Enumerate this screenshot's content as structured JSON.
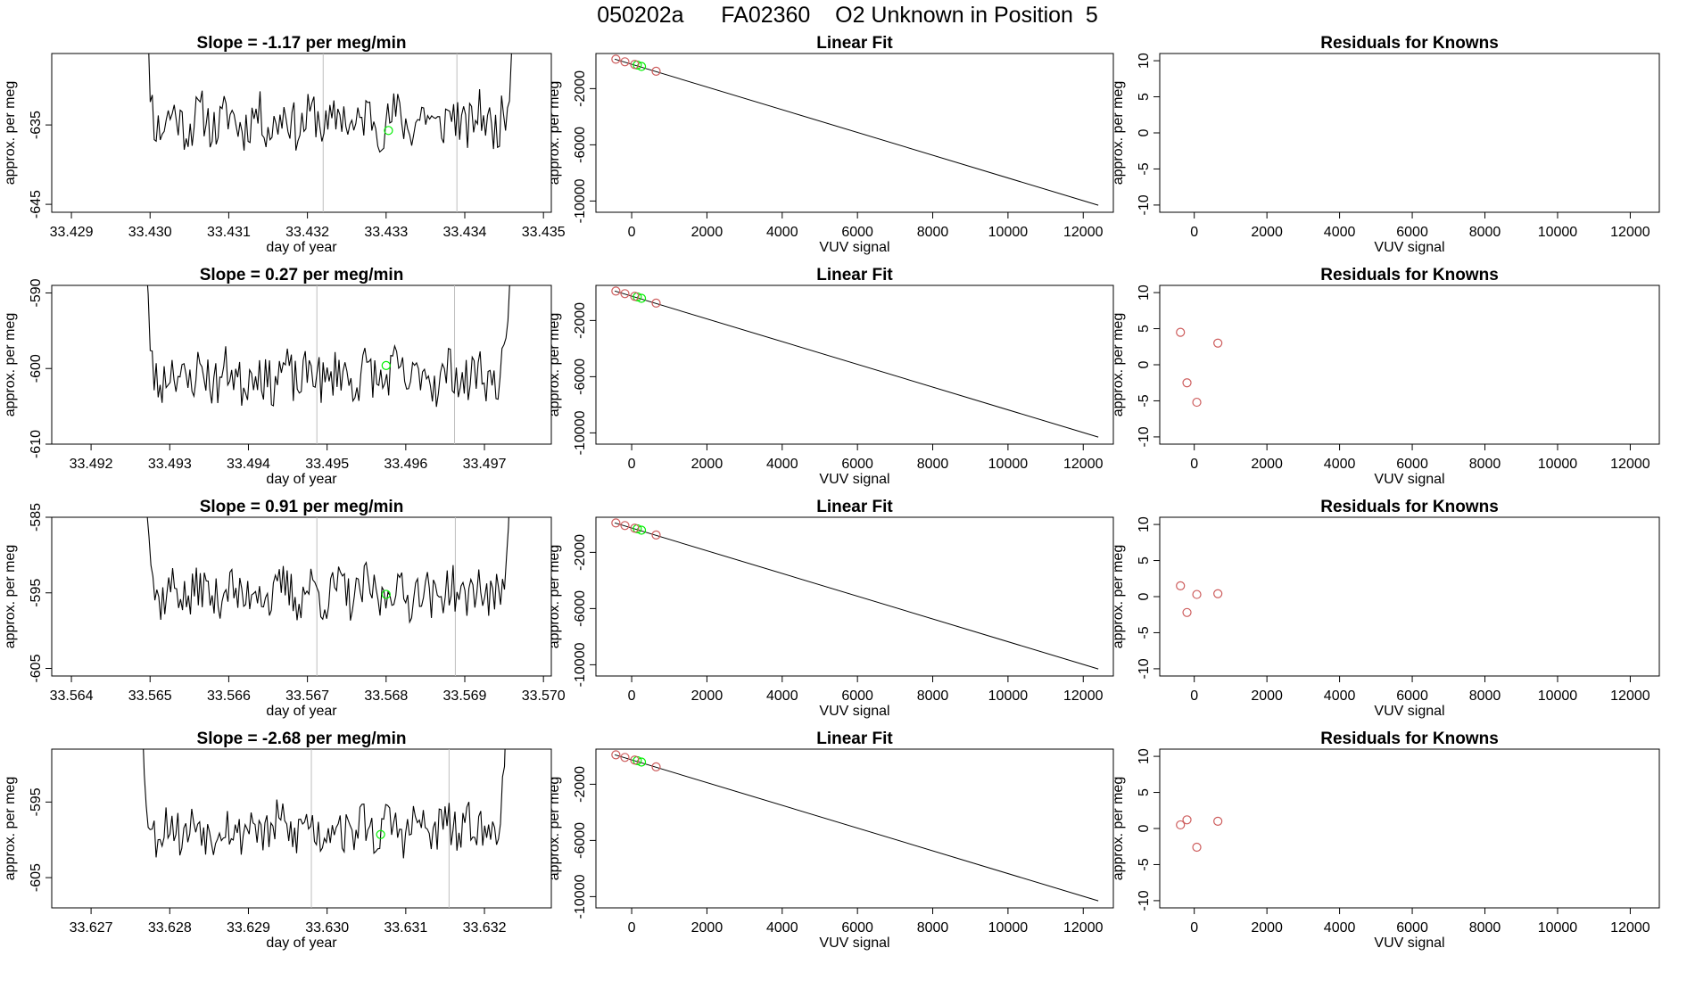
{
  "figure": {
    "title": "050202a      FA02360    O2 Unknown in Position  5"
  },
  "colors": {
    "line": "#000000",
    "gridline": "#bebebe",
    "green_point": "#00ee00",
    "red_point": "#cd5c5c"
  },
  "chart_data": [
    {
      "type": "line",
      "title": "Slope =  -1.17  per meg/min",
      "xlabel": "day of year",
      "ylabel": "approx. per meg",
      "xlim": [
        33.42875,
        33.4351
      ],
      "ylim": [
        -646,
        -626
      ],
      "xticks": [
        33.429,
        33.43,
        33.431,
        33.432,
        33.433,
        33.434,
        33.435
      ],
      "xtick_labels": [
        "33.429",
        "33.430",
        "33.431",
        "33.432",
        "33.433",
        "33.434",
        "33.435"
      ],
      "yticks": [
        -635,
        -645
      ],
      "ytick_labels": [
        "-635",
        "-645"
      ],
      "vlines": [
        33.4322,
        33.4339
      ],
      "x_start": 33.42985,
      "x_end": 33.43467,
      "baseline": -634.5,
      "noise": 3.0,
      "seed": 11,
      "green_point": {
        "x": 33.43303,
        "y": -635.7
      }
    },
    {
      "type": "scatter",
      "title": "Linear Fit",
      "xlabel": "VUV signal",
      "ylabel": "approx. per meg",
      "xlim": [
        -950,
        12800
      ],
      "ylim": [
        -10800,
        500
      ],
      "xticks": [
        0,
        2000,
        4000,
        6000,
        8000,
        10000,
        12000
      ],
      "xtick_labels": [
        "0",
        "2000",
        "4000",
        "6000",
        "8000",
        "10000",
        "12000"
      ],
      "yticks": [
        -2000,
        -6000,
        -10000
      ],
      "ytick_labels": [
        "-2000",
        "-6000",
        "-10000"
      ],
      "fit_line": [
        [
          -450,
          100
        ],
        [
          12400,
          -10300
        ]
      ],
      "red_points": [
        [
          -420,
          95
        ],
        [
          -180,
          -90
        ],
        [
          80,
          -280
        ],
        [
          650,
          -760
        ]
      ],
      "green_points": [
        [
          150,
          -320
        ],
        [
          260,
          -420
        ]
      ]
    },
    {
      "type": "scatter",
      "title": "Residuals for Knowns",
      "xlabel": "VUV signal",
      "ylabel": "approx. per meg",
      "xlim": [
        -950,
        12800
      ],
      "ylim": [
        -11,
        11
      ],
      "xticks": [
        0,
        2000,
        4000,
        6000,
        8000,
        10000,
        12000
      ],
      "xtick_labels": [
        "0",
        "2000",
        "4000",
        "6000",
        "8000",
        "10000",
        "12000"
      ],
      "yticks": [
        10,
        5,
        0,
        -5,
        -10
      ],
      "ytick_labels": [
        "10",
        "5",
        "0",
        "-5",
        "-10"
      ],
      "red_points": []
    },
    {
      "type": "line",
      "title": "Slope =  0.27  per meg/min",
      "xlabel": "day of year",
      "ylabel": "approx. per meg",
      "xlim": [
        33.4915,
        33.49785
      ],
      "ylim": [
        -610,
        -589
      ],
      "xticks": [
        33.492,
        33.493,
        33.494,
        33.495,
        33.496,
        33.497
      ],
      "xtick_labels": [
        "33.492",
        "33.493",
        "33.494",
        "33.495",
        "33.496",
        "33.497"
      ],
      "yticks": [
        -590,
        -600,
        -610
      ],
      "ytick_labels": [
        "-590",
        "-600",
        "-610"
      ],
      "vlines": [
        33.49487,
        33.49662
      ],
      "x_start": 33.4926,
      "x_end": 33.4974,
      "baseline": -601.0,
      "noise": 3.2,
      "seed": 23,
      "green_point": {
        "x": 33.49575,
        "y": -599.6
      }
    },
    {
      "type": "scatter",
      "title": "Linear Fit",
      "xlabel": "VUV signal",
      "ylabel": "approx. per meg",
      "xlim": [
        -950,
        12800
      ],
      "ylim": [
        -10800,
        500
      ],
      "xticks": [
        0,
        2000,
        4000,
        6000,
        8000,
        10000,
        12000
      ],
      "xtick_labels": [
        "0",
        "2000",
        "4000",
        "6000",
        "8000",
        "10000",
        "12000"
      ],
      "yticks": [
        -2000,
        -6000,
        -10000
      ],
      "ytick_labels": [
        "-2000",
        "-6000",
        "-10000"
      ],
      "fit_line": [
        [
          -450,
          100
        ],
        [
          12400,
          -10300
        ]
      ],
      "red_points": [
        [
          -420,
          95
        ],
        [
          -180,
          -90
        ],
        [
          80,
          -280
        ],
        [
          650,
          -760
        ]
      ],
      "green_points": [
        [
          150,
          -320
        ],
        [
          260,
          -420
        ]
      ]
    },
    {
      "type": "scatter",
      "title": "Residuals for Knowns",
      "xlabel": "VUV signal",
      "ylabel": "approx. per meg",
      "xlim": [
        -950,
        12800
      ],
      "ylim": [
        -11,
        11
      ],
      "xticks": [
        0,
        2000,
        4000,
        6000,
        8000,
        10000,
        12000
      ],
      "xtick_labels": [
        "0",
        "2000",
        "4000",
        "6000",
        "8000",
        "10000",
        "12000"
      ],
      "yticks": [
        10,
        5,
        0,
        -5,
        -10
      ],
      "ytick_labels": [
        "10",
        "5",
        "0",
        "-5",
        "-10"
      ],
      "red_points": [
        [
          -380,
          4.5
        ],
        [
          -200,
          -2.5
        ],
        [
          70,
          -5.2
        ],
        [
          650,
          3.0
        ]
      ]
    },
    {
      "type": "line",
      "title": "Slope =  0.91  per meg/min",
      "xlabel": "day of year",
      "ylabel": "approx. per meg",
      "xlim": [
        33.56375,
        33.5701
      ],
      "ylim": [
        -606,
        -585
      ],
      "xticks": [
        33.564,
        33.565,
        33.566,
        33.567,
        33.568,
        33.569,
        33.57
      ],
      "xtick_labels": [
        "33.564",
        "33.565",
        "33.566",
        "33.567",
        "33.568",
        "33.569",
        "33.570"
      ],
      "yticks": [
        -585,
        -595,
        -605
      ],
      "ytick_labels": [
        "-585",
        "-595",
        "-605"
      ],
      "vlines": [
        33.56712,
        33.56888
      ],
      "x_start": 33.56486,
      "x_end": 33.56963,
      "baseline": -595.0,
      "noise": 3.0,
      "seed": 37,
      "green_point": {
        "x": 33.568,
        "y": -595.2
      }
    },
    {
      "type": "scatter",
      "title": "Linear Fit",
      "xlabel": "VUV signal",
      "ylabel": "approx. per meg",
      "xlim": [
        -950,
        12800
      ],
      "ylim": [
        -10800,
        500
      ],
      "xticks": [
        0,
        2000,
        4000,
        6000,
        8000,
        10000,
        12000
      ],
      "xtick_labels": [
        "0",
        "2000",
        "4000",
        "6000",
        "8000",
        "10000",
        "12000"
      ],
      "yticks": [
        -2000,
        -6000,
        -10000
      ],
      "ytick_labels": [
        "-2000",
        "-6000",
        "-10000"
      ],
      "fit_line": [
        [
          -450,
          100
        ],
        [
          12400,
          -10300
        ]
      ],
      "red_points": [
        [
          -420,
          95
        ],
        [
          -180,
          -90
        ],
        [
          80,
          -280
        ],
        [
          650,
          -760
        ]
      ],
      "green_points": [
        [
          150,
          -320
        ],
        [
          260,
          -420
        ]
      ]
    },
    {
      "type": "scatter",
      "title": "Residuals for Knowns",
      "xlabel": "VUV signal",
      "ylabel": "approx. per meg",
      "xlim": [
        -950,
        12800
      ],
      "ylim": [
        -11,
        11
      ],
      "xticks": [
        0,
        2000,
        4000,
        6000,
        8000,
        10000,
        12000
      ],
      "xtick_labels": [
        "0",
        "2000",
        "4000",
        "6000",
        "8000",
        "10000",
        "12000"
      ],
      "yticks": [
        10,
        5,
        0,
        -5,
        -10
      ],
      "ytick_labels": [
        "10",
        "5",
        "0",
        "-5",
        "-10"
      ],
      "red_points": [
        [
          -380,
          1.5
        ],
        [
          -200,
          -2.2
        ],
        [
          70,
          0.3
        ],
        [
          650,
          0.4
        ]
      ]
    },
    {
      "type": "line",
      "title": "Slope =  -2.68  per meg/min",
      "xlabel": "day of year",
      "ylabel": "approx. per meg",
      "xlim": [
        33.6265,
        33.63285
      ],
      "ylim": [
        -609,
        -588
      ],
      "xticks": [
        33.627,
        33.628,
        33.629,
        33.63,
        33.631,
        33.632
      ],
      "xtick_labels": [
        "33.627",
        "33.628",
        "33.629",
        "33.630",
        "33.631",
        "33.632"
      ],
      "yticks": [
        -595,
        -605
      ],
      "ytick_labels": [
        "-595",
        "-605"
      ],
      "vlines": [
        33.6298,
        33.63155
      ],
      "x_start": 33.62755,
      "x_end": 33.63233,
      "baseline": -598.5,
      "noise": 3.0,
      "seed": 53,
      "green_point": {
        "x": 33.63068,
        "y": -599.3
      }
    },
    {
      "type": "scatter",
      "title": "Linear Fit",
      "xlabel": "VUV signal",
      "ylabel": "approx. per meg",
      "xlim": [
        -950,
        12800
      ],
      "ylim": [
        -10800,
        500
      ],
      "xticks": [
        0,
        2000,
        4000,
        6000,
        8000,
        10000,
        12000
      ],
      "xtick_labels": [
        "0",
        "2000",
        "4000",
        "6000",
        "8000",
        "10000",
        "12000"
      ],
      "yticks": [
        -2000,
        -6000,
        -10000
      ],
      "ytick_labels": [
        "-2000",
        "-6000",
        "-10000"
      ],
      "fit_line": [
        [
          -450,
          100
        ],
        [
          12400,
          -10300
        ]
      ],
      "red_points": [
        [
          -420,
          95
        ],
        [
          -180,
          -90
        ],
        [
          80,
          -280
        ],
        [
          650,
          -760
        ]
      ],
      "green_points": [
        [
          150,
          -320
        ],
        [
          260,
          -420
        ]
      ]
    },
    {
      "type": "scatter",
      "title": "Residuals for Knowns",
      "xlabel": "VUV signal",
      "ylabel": "approx. per meg",
      "xlim": [
        -950,
        12800
      ],
      "ylim": [
        -11,
        11
      ],
      "xticks": [
        0,
        2000,
        4000,
        6000,
        8000,
        10000,
        12000
      ],
      "xtick_labels": [
        "0",
        "2000",
        "4000",
        "6000",
        "8000",
        "10000",
        "12000"
      ],
      "yticks": [
        10,
        5,
        0,
        -5,
        -10
      ],
      "ytick_labels": [
        "10",
        "5",
        "0",
        "-5",
        "-10"
      ],
      "red_points": [
        [
          -380,
          0.5
        ],
        [
          -200,
          1.2
        ],
        [
          70,
          -2.6
        ],
        [
          650,
          1.0
        ]
      ]
    }
  ]
}
